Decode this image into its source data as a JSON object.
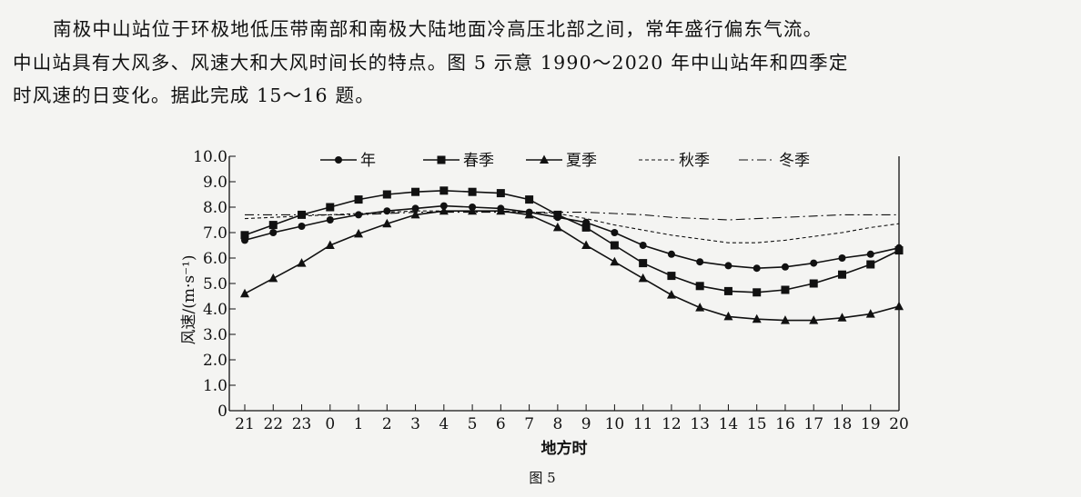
{
  "passage": {
    "line1": "南极中山站位于环极地低压带南部和南极大陆地面冷高压北部之间，常年盛行偏东气流。",
    "line2": "中山站具有大风多、风速大和大风时间长的特点。图 5 示意 1990～2020 年中山站年和四季定",
    "line3": "时风速的日变化。据此完成 15～16 题。"
  },
  "chart_data": {
    "type": "line",
    "caption": "图 5",
    "xlabel": "地方时",
    "ylabel": "风速/(m·s⁻¹)",
    "ylim": [
      0,
      10
    ],
    "yticks": [
      "0",
      "1.0",
      "2.0",
      "3.0",
      "4.0",
      "5.0",
      "6.0",
      "7.0",
      "8.0",
      "9.0",
      "10.0"
    ],
    "x": [
      "21",
      "22",
      "23",
      "0",
      "1",
      "2",
      "3",
      "4",
      "5",
      "6",
      "7",
      "8",
      "9",
      "10",
      "11",
      "12",
      "13",
      "14",
      "15",
      "16",
      "17",
      "18",
      "19",
      "20"
    ],
    "legend_position": "top",
    "series": [
      {
        "name": "年",
        "style": "solid",
        "marker": "circle",
        "values": [
          6.7,
          7.0,
          7.25,
          7.5,
          7.7,
          7.85,
          7.95,
          8.05,
          8.0,
          7.95,
          7.8,
          7.6,
          7.4,
          7.0,
          6.5,
          6.15,
          5.85,
          5.7,
          5.6,
          5.65,
          5.8,
          6.0,
          6.15,
          6.4
        ]
      },
      {
        "name": "春季",
        "style": "solid",
        "marker": "square",
        "values": [
          6.9,
          7.3,
          7.7,
          8.0,
          8.3,
          8.5,
          8.6,
          8.65,
          8.6,
          8.55,
          8.3,
          7.7,
          7.2,
          6.5,
          5.8,
          5.3,
          4.9,
          4.7,
          4.65,
          4.75,
          5.0,
          5.35,
          5.75,
          6.3
        ]
      },
      {
        "name": "夏季",
        "style": "solid",
        "marker": "triangle",
        "values": [
          4.6,
          5.2,
          5.8,
          6.5,
          6.95,
          7.35,
          7.7,
          7.85,
          7.85,
          7.85,
          7.7,
          7.2,
          6.5,
          5.85,
          5.2,
          4.55,
          4.05,
          3.7,
          3.6,
          3.55,
          3.55,
          3.65,
          3.8,
          4.1
        ]
      },
      {
        "name": "秋季",
        "style": "dashed",
        "marker": "none",
        "values": [
          7.55,
          7.6,
          7.65,
          7.7,
          7.75,
          7.8,
          7.85,
          7.85,
          7.85,
          7.85,
          7.8,
          7.75,
          7.55,
          7.3,
          7.1,
          6.9,
          6.75,
          6.6,
          6.6,
          6.7,
          6.85,
          7.0,
          7.2,
          7.35
        ]
      },
      {
        "name": "冬季",
        "style": "dashdot",
        "marker": "none",
        "values": [
          7.7,
          7.7,
          7.7,
          7.7,
          7.7,
          7.75,
          7.8,
          7.8,
          7.8,
          7.8,
          7.8,
          7.8,
          7.8,
          7.75,
          7.7,
          7.6,
          7.55,
          7.5,
          7.55,
          7.6,
          7.65,
          7.7,
          7.7,
          7.7
        ]
      }
    ]
  }
}
